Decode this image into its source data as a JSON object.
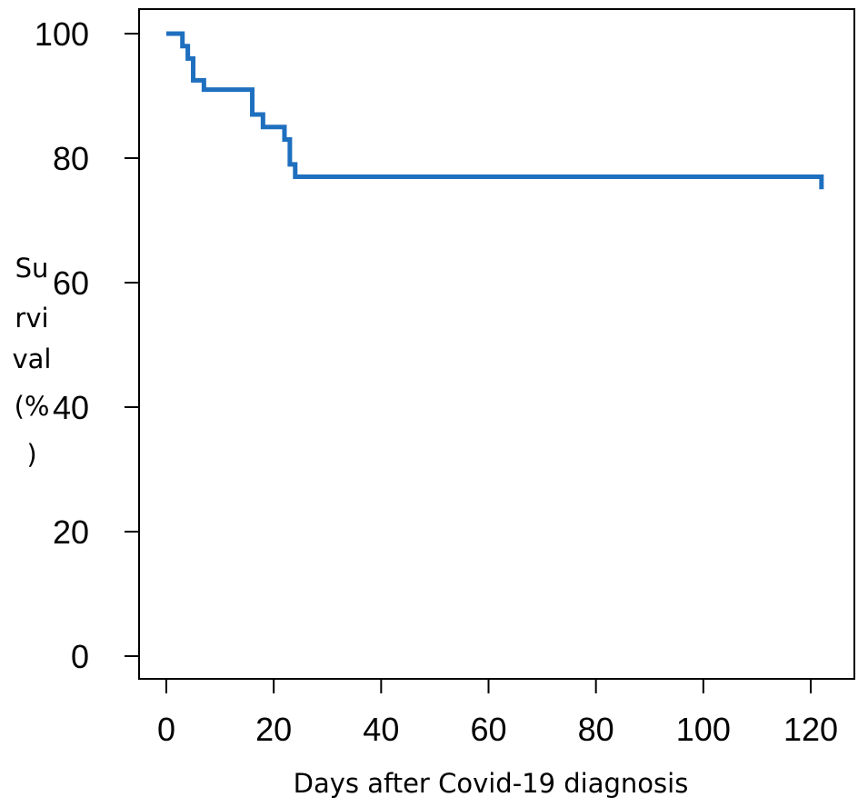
{
  "chart_data": {
    "type": "line",
    "step": true,
    "title": "",
    "xlabel": "Days after Covid-19 diagnosis",
    "ylabel_lines": [
      "Su",
      "rvi",
      "val",
      "(%",
      ")"
    ],
    "xlim": [
      0,
      122
    ],
    "ylim": [
      0,
      100
    ],
    "xticks": [
      0,
      20,
      40,
      60,
      80,
      100,
      120
    ],
    "yticks": [
      0,
      20,
      40,
      60,
      80,
      100
    ],
    "grid": false,
    "line_color": "#1f6fbf",
    "series": [
      {
        "x": [
          0,
          3,
          4,
          5,
          7,
          16,
          18,
          22,
          23,
          24,
          122
        ],
        "y": [
          100,
          98,
          96,
          92.5,
          91,
          87,
          85,
          83,
          79,
          77,
          75
        ]
      }
    ]
  }
}
